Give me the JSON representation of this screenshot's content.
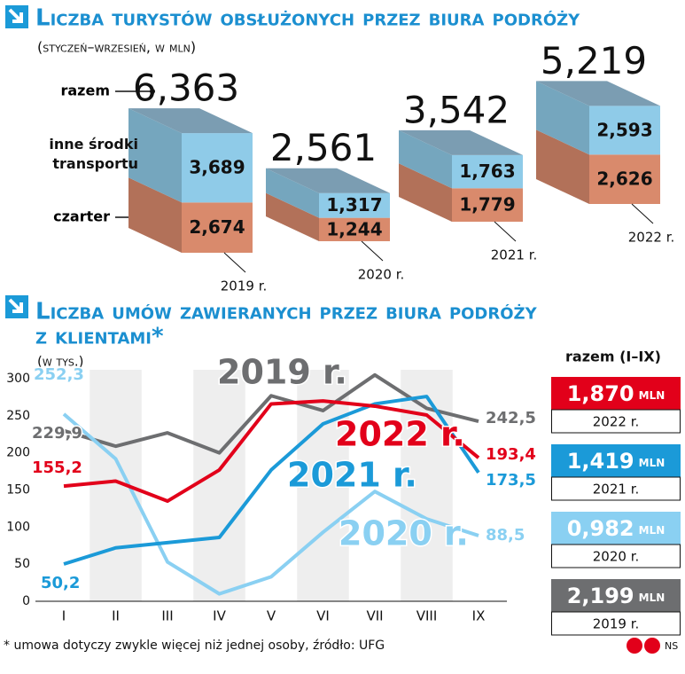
{
  "chart_data": [
    {
      "type": "bar3d",
      "title": "Liczba turystów obsłużonych przez biura podróży",
      "subtitle": "(styczeń–wrzesień, w mln)",
      "categories": [
        "2019 r.",
        "2020 r.",
        "2021 r.",
        "2022 r."
      ],
      "series": [
        {
          "name": "czarter",
          "color": "#d98a6c",
          "values": [
            2.674,
            1.244,
            1.779,
            2.626
          ],
          "value_labels": [
            "2,674",
            "1,244",
            "1,779",
            "2,626"
          ]
        },
        {
          "name": "inne środki transportu",
          "color": "#8fcbe8",
          "values": [
            3.689,
            1.317,
            1.763,
            2.593
          ],
          "value_labels": [
            "3,689",
            "1,317",
            "1,763",
            "2,593"
          ]
        }
      ],
      "totals": {
        "name": "razem",
        "color": "#7b9db2",
        "values": [
          6.363,
          2.561,
          3.542,
          5.219
        ],
        "value_labels": [
          "6,363",
          "2,561",
          "3,542",
          "5,219"
        ]
      }
    },
    {
      "type": "line",
      "title": [
        "Liczba umów zawieranych przez biura podróży",
        "z klientami*"
      ],
      "subtitle": "(w tys.)",
      "categories": [
        "I",
        "II",
        "III",
        "IV",
        "V",
        "VI",
        "VII",
        "VIII",
        "IX"
      ],
      "ylim": [
        0,
        300
      ],
      "yticks": [
        0,
        50,
        100,
        150,
        200,
        250,
        300
      ],
      "series": [
        {
          "name": "2019 r.",
          "color": "#6d6e70",
          "values": [
            229.9,
            209,
            227,
            200,
            277,
            257,
            305,
            260,
            242.5
          ],
          "value_labels": [
            "229,9",
            null,
            null,
            null,
            null,
            null,
            null,
            null,
            "242,5"
          ]
        },
        {
          "name": "2020 r.",
          "color": "#8ad0f2",
          "values": [
            252.3,
            192,
            53,
            10,
            33,
            93,
            148,
            111,
            88.5
          ],
          "value_labels": [
            "252,3",
            null,
            null,
            null,
            null,
            null,
            null,
            null,
            "88,5"
          ]
        },
        {
          "name": "2021 r.",
          "color": "#1b9ad8",
          "values": [
            50.2,
            72,
            79,
            86,
            177,
            239,
            266,
            276,
            173.5
          ],
          "value_labels": [
            "50,2",
            null,
            null,
            null,
            null,
            null,
            null,
            null,
            "173,5"
          ]
        },
        {
          "name": "2022 r.",
          "color": "#e2001a",
          "values": [
            155.2,
            162,
            135,
            177,
            266,
            270,
            263,
            251,
            193.4
          ],
          "value_labels": [
            "155,2",
            null,
            null,
            null,
            null,
            null,
            null,
            null,
            "193,4"
          ]
        }
      ],
      "totals": {
        "title": "razem (I–IX)",
        "unit": "mln",
        "categories": [
          "2022 r.",
          "2021 r.",
          "2020 r.",
          "2019 r."
        ],
        "values": [
          1.87,
          1.419,
          0.982,
          2.199
        ],
        "value_labels": [
          "1,870",
          "1,419",
          "0,982",
          "2,199"
        ]
      },
      "footnote": "* umowa dotyczy zwykle więcej niż jednej osoby, źródło: UFG"
    }
  ],
  "credit": "NS"
}
